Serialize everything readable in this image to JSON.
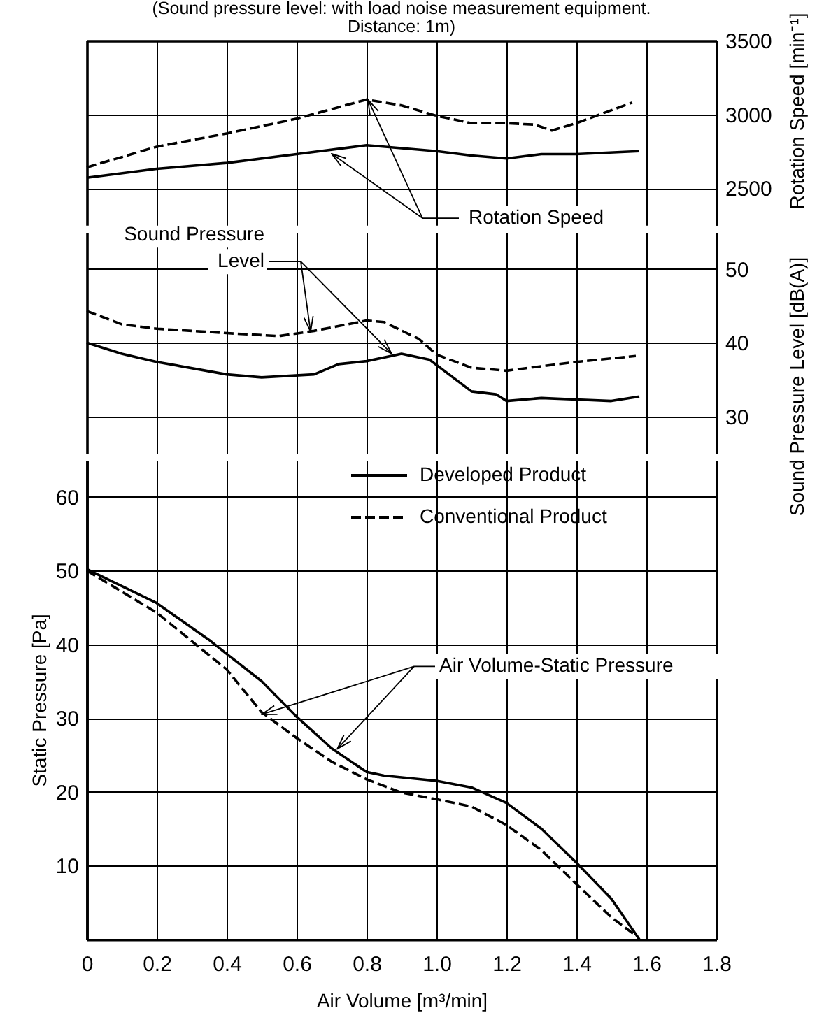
{
  "chart_data": [
    {
      "type": "line",
      "title": "(Sound pressure level: with load noise measurement equipment.",
      "subtitle": "Distance: 1m)",
      "ylabel": "Rotation Speed [min⁻¹]",
      "xlim": [
        0,
        1.8
      ],
      "xticks": [
        0,
        0.2,
        0.4,
        0.6,
        0.8,
        1,
        1.2,
        1.4,
        1.6,
        1.8
      ],
      "ylim": [
        2250,
        3500
      ],
      "yticks": [
        2500,
        3000,
        3500
      ],
      "grid": true,
      "tick_labels": "y",
      "annotations": [
        "Rotation Speed"
      ],
      "series": [
        {
          "color": "#000000",
          "line_style": "solid",
          "x": [
            0,
            0.2,
            0.4,
            0.6,
            0.8,
            1.0,
            1.1,
            1.2,
            1.3,
            1.4,
            1.58
          ],
          "values": [
            2570,
            2630,
            2670,
            2730,
            2790,
            2750,
            2720,
            2700,
            2730,
            2730,
            2750
          ]
        },
        {
          "color": "#000000",
          "line_style": "dashed",
          "x": [
            0,
            0.2,
            0.4,
            0.6,
            0.8,
            0.9,
            1.0,
            1.1,
            1.2,
            1.28,
            1.33,
            1.4,
            1.56
          ],
          "values": [
            2640,
            2780,
            2870,
            2970,
            3100,
            3060,
            2990,
            2940,
            2940,
            2930,
            2890,
            2940,
            3080
          ]
        }
      ]
    },
    {
      "type": "line",
      "ylabel": "Sound Pressure Level [dB(A)]",
      "xlim": [
        0,
        1.8
      ],
      "xticks": [
        0,
        0.2,
        0.4,
        0.6,
        0.8,
        1,
        1.2,
        1.4,
        1.6,
        1.8
      ],
      "ylim": [
        25,
        55
      ],
      "yticks": [
        30,
        40,
        50
      ],
      "grid": true,
      "tick_labels": "y",
      "annotations": [
        "Sound Pressure Level"
      ],
      "series": [
        {
          "color": "#000000",
          "line_style": "solid",
          "x": [
            0,
            0.1,
            0.2,
            0.4,
            0.5,
            0.65,
            0.72,
            0.8,
            0.9,
            0.98,
            1.1,
            1.17,
            1.2,
            1.3,
            1.4,
            1.5,
            1.58
          ],
          "values": [
            40,
            38.5,
            37.4,
            35.7,
            35.3,
            35.7,
            37.1,
            37.5,
            38.5,
            37.7,
            33.4,
            33.0,
            32.1,
            32.5,
            32.3,
            32.1,
            32.7
          ]
        },
        {
          "color": "#000000",
          "line_style": "dashed",
          "x": [
            0,
            0.1,
            0.2,
            0.4,
            0.55,
            0.65,
            0.8,
            0.85,
            0.95,
            1.0,
            1.1,
            1.2,
            1.4,
            1.57
          ],
          "values": [
            44.3,
            42.5,
            41.9,
            41.3,
            40.9,
            41.6,
            43.0,
            42.8,
            40.5,
            38.4,
            36.6,
            36.2,
            37.4,
            38.2
          ]
        }
      ]
    },
    {
      "type": "line",
      "xlabel": "Air Volume [m³/min]",
      "ylabel": "Static Pressure [Pa]",
      "xlim": [
        0,
        1.8
      ],
      "xticks": [
        0,
        0.2,
        0.4,
        0.6,
        0.8,
        {
          "value": 1,
          "label": "1.0"
        },
        1.2,
        1.4,
        1.6,
        1.8
      ],
      "ylim": [
        0,
        65
      ],
      "yticks": [
        10,
        20,
        30,
        40,
        50,
        60
      ],
      "grid": true,
      "legend": "top right",
      "annotations": [
        "Air Volume-Static Pressure"
      ],
      "series": [
        {
          "name": "Developed Product",
          "color": "#000000",
          "line_style": "solid",
          "x": [
            0,
            0.2,
            0.35,
            0.4,
            0.5,
            0.6,
            0.7,
            0.8,
            0.85,
            1.0,
            1.1,
            1.2,
            1.3,
            1.4,
            1.5,
            1.58
          ],
          "values": [
            50.2,
            45.6,
            40.6,
            38.7,
            35.0,
            30.2,
            25.9,
            22.7,
            22.2,
            21.5,
            20.6,
            18.5,
            15.0,
            10.4,
            5.5,
            0
          ]
        },
        {
          "name": "Conventional Product",
          "color": "#000000",
          "line_style": "dashed",
          "x": [
            0,
            0.2,
            0.4,
            0.5,
            0.6,
            0.7,
            0.8,
            0.9,
            1.0,
            1.1,
            1.2,
            1.3,
            1.4,
            1.5,
            1.57
          ],
          "values": [
            50,
            44.3,
            36.6,
            30.8,
            27.3,
            24.1,
            21.7,
            19.9,
            19.0,
            18.0,
            15.5,
            12.1,
            7.5,
            3.0,
            0.5
          ]
        }
      ]
    }
  ]
}
